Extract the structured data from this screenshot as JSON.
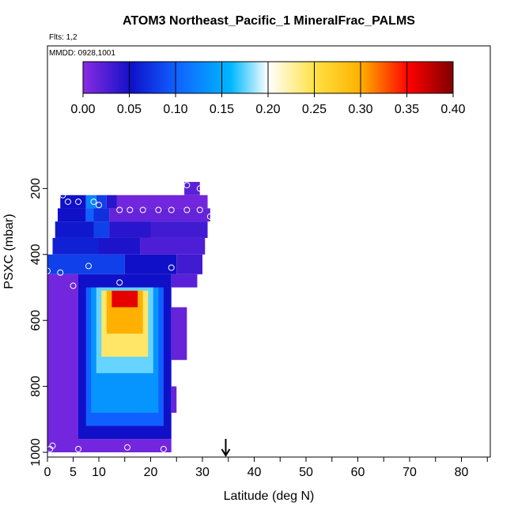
{
  "chart_data": {
    "type": "heatmap",
    "title": "ATOM3 Northeast_Pacific_1 MineralFrac_PALMS",
    "flights_note": "Flts: 1,2",
    "date_note": "MMDD: 0928,1001",
    "xlabel": "Latitude (deg N)",
    "ylabel": "PSXC (mbar)",
    "xlim": [
      0,
      85
    ],
    "ylim": [
      1000,
      0
    ],
    "x_ticks": [
      0,
      5,
      10,
      20,
      30,
      40,
      50,
      60,
      70,
      80
    ],
    "y_ticks": [
      200,
      400,
      600,
      800,
      1000
    ],
    "colorbar": {
      "min": 0.0,
      "max": 0.4,
      "tick_labels": [
        "0.00",
        "0.05",
        "0.10",
        "0.15",
        "0.20",
        "0.25",
        "0.30",
        "0.35",
        "0.40"
      ],
      "colors": [
        "#8a2be2",
        "#1010c8",
        "#00a0ff",
        "#ffffff",
        "#ffd700",
        "#ff0000",
        "#800000"
      ]
    },
    "cells": [
      {
        "x0": 26.5,
        "x1": 29.5,
        "p0": 180,
        "p1": 220,
        "v": 0.02
      },
      {
        "x0": 2.5,
        "x1": 7.5,
        "p0": 220,
        "p1": 260,
        "v": 0.05
      },
      {
        "x0": 7.5,
        "x1": 9.5,
        "p0": 220,
        "p1": 260,
        "v": 0.12
      },
      {
        "x0": 9.5,
        "x1": 11.5,
        "p0": 220,
        "p1": 260,
        "v": 0.08
      },
      {
        "x0": 11.5,
        "x1": 13.5,
        "p0": 220,
        "p1": 260,
        "v": 0.04
      },
      {
        "x0": 13.5,
        "x1": 31.0,
        "p0": 220,
        "p1": 260,
        "v": 0.01
      },
      {
        "x0": 2.0,
        "x1": 7.5,
        "p0": 260,
        "p1": 300,
        "v": 0.05
      },
      {
        "x0": 7.5,
        "x1": 9.0,
        "p0": 260,
        "p1": 300,
        "v": 0.1
      },
      {
        "x0": 9.0,
        "x1": 12.0,
        "p0": 260,
        "p1": 300,
        "v": 0.07
      },
      {
        "x0": 12.0,
        "x1": 31.5,
        "p0": 260,
        "p1": 300,
        "v": 0.015
      },
      {
        "x0": 1.5,
        "x1": 9.0,
        "p0": 300,
        "p1": 350,
        "v": 0.055
      },
      {
        "x0": 9.0,
        "x1": 12.0,
        "p0": 300,
        "p1": 350,
        "v": 0.08
      },
      {
        "x0": 12.0,
        "x1": 20.0,
        "p0": 300,
        "p1": 350,
        "v": 0.04
      },
      {
        "x0": 20.0,
        "x1": 31.0,
        "p0": 300,
        "p1": 350,
        "v": 0.03
      },
      {
        "x0": 1.0,
        "x1": 10.0,
        "p0": 350,
        "p1": 400,
        "v": 0.06
      },
      {
        "x0": 10.0,
        "x1": 18.0,
        "p0": 350,
        "p1": 400,
        "v": 0.045
      },
      {
        "x0": 18.0,
        "x1": 30.5,
        "p0": 350,
        "p1": 400,
        "v": 0.025
      },
      {
        "x0": 0.0,
        "x1": 15.0,
        "p0": 400,
        "p1": 460,
        "v": 0.08
      },
      {
        "x0": 15.0,
        "x1": 25.0,
        "p0": 400,
        "p1": 460,
        "v": 0.05
      },
      {
        "x0": 25.0,
        "x1": 30.0,
        "p0": 400,
        "p1": 460,
        "v": 0.03
      },
      {
        "x0": 6.0,
        "x1": 24.0,
        "p0": 460,
        "p1": 960,
        "v": 0.05
      },
      {
        "x0": 7.5,
        "x1": 22.5,
        "p0": 500,
        "p1": 920,
        "v": 0.1
      },
      {
        "x0": 8.5,
        "x1": 21.5,
        "p0": 500,
        "p1": 880,
        "v": 0.13
      },
      {
        "x0": 9.5,
        "x1": 20.5,
        "p0": 500,
        "p1": 760,
        "v": 0.17
      },
      {
        "x0": 10.5,
        "x1": 19.5,
        "p0": 510,
        "p1": 710,
        "v": 0.24
      },
      {
        "x0": 11.5,
        "x1": 18.5,
        "p0": 510,
        "p1": 640,
        "v": 0.3
      },
      {
        "x0": 12.5,
        "x1": 17.5,
        "p0": 510,
        "p1": 560,
        "v": 0.36
      },
      {
        "x0": 0.0,
        "x1": 6.0,
        "p0": 460,
        "p1": 1000,
        "v": 0.01
      },
      {
        "x0": 6.0,
        "x1": 24.0,
        "p0": 960,
        "p1": 1000,
        "v": 0.01
      },
      {
        "x0": 24.0,
        "x1": 29.0,
        "p0": 460,
        "p1": 500,
        "v": 0.02
      },
      {
        "x0": 24.0,
        "x1": 27.0,
        "p0": 560,
        "p1": 720,
        "v": 0.015
      },
      {
        "x0": 24.0,
        "x1": 25.0,
        "p0": 800,
        "p1": 880,
        "v": 0.015
      }
    ],
    "observations": [
      [
        27,
        190
      ],
      [
        29.5,
        200
      ],
      [
        3,
        220
      ],
      [
        4,
        240
      ],
      [
        6,
        240
      ],
      [
        9,
        240
      ],
      [
        10,
        250
      ],
      [
        14,
        265
      ],
      [
        16,
        265
      ],
      [
        18.5,
        265
      ],
      [
        21.5,
        265
      ],
      [
        24,
        265
      ],
      [
        27,
        265
      ],
      [
        29.5,
        265
      ],
      [
        31.5,
        285
      ],
      [
        8,
        435
      ],
      [
        24,
        440
      ],
      [
        0,
        450
      ],
      [
        2.5,
        455
      ],
      [
        5,
        495
      ],
      [
        14,
        485
      ],
      [
        1,
        980
      ],
      [
        0.5,
        990
      ],
      [
        6,
        990
      ],
      [
        15.5,
        985
      ],
      [
        22.5,
        990
      ]
    ],
    "marker_latitude": 34.5
  }
}
